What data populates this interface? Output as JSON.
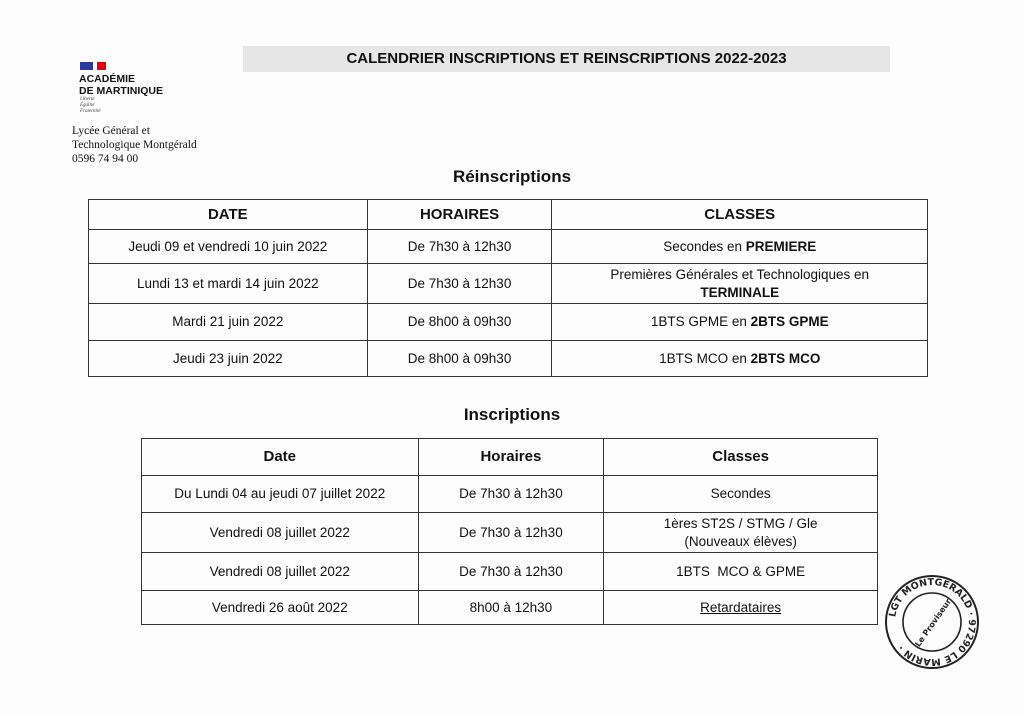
{
  "header": {
    "academy_line1": "ACADÉMIE",
    "academy_line2": "DE MARTINIQUE",
    "motto": [
      "Liberté",
      "Égalité",
      "Fraternité"
    ],
    "school_line1": "Lycée Général et",
    "school_line2": "Technologique Montgérald",
    "phone": "0596 74 94 00",
    "flag_colors": [
      "#000091",
      "#ffffff",
      "#e1000f"
    ]
  },
  "title": "CALENDRIER INSCRIPTIONS ET REINSCRIPTIONS 2022-2023",
  "reinscriptions": {
    "heading": "Réinscriptions",
    "columns": [
      "DATE",
      "HORAIRES",
      "CLASSES"
    ],
    "rows": [
      {
        "date": "Jeudi 09 et vendredi 10 juin 2022",
        "hours": "De 7h30 à 12h30",
        "class_pre": "Secondes en ",
        "class_bold": "PREMIERE"
      },
      {
        "date": "Lundi 13 et mardi 14 juin 2022",
        "hours": "De 7h30 à 12h30",
        "class_pre": "Premières Générales et Technologiques en",
        "class_bold": "TERMINALE"
      },
      {
        "date": "Mardi 21 juin 2022",
        "hours": "De 8h00 à 09h30",
        "class_pre": "1BTS GPME en ",
        "class_bold": "2BTS GPME"
      },
      {
        "date": "Jeudi 23 juin 2022",
        "hours": "De 8h00 à 09h30",
        "class_pre": "1BTS MCO en ",
        "class_bold": "2BTS MCO"
      }
    ]
  },
  "inscriptions": {
    "heading": "Inscriptions",
    "columns": [
      "Date",
      "Horaires",
      "Classes"
    ],
    "rows": [
      {
        "date": "Du Lundi 04 au jeudi 07 juillet 2022",
        "hours": "De 7h30 à 12h30",
        "class": "Secondes"
      },
      {
        "date": "Vendredi 08 juillet 2022",
        "hours": "De 7h30 à 12h30",
        "class": "1ères ST2S / STMG / Gle",
        "class2": "(Nouveaux élèves)"
      },
      {
        "date": "Vendredi 08 juillet 2022",
        "hours": "De 7h30 à 12h30",
        "class": "1BTS  MCO & GPME"
      },
      {
        "date": "Vendredi 26 août 2022",
        "hours": "8h00 à 12h30",
        "class": "Retardataires"
      }
    ]
  },
  "stamp": {
    "outer": "LGT MONTGERALD · 97290 LE MARIN ·",
    "inner": "Le Proviseur"
  }
}
